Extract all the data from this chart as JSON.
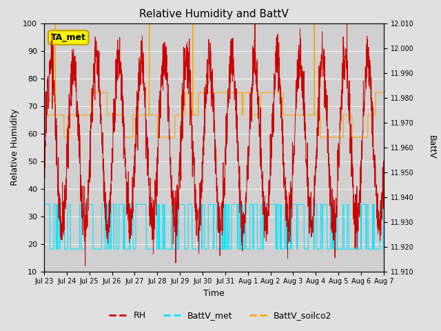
{
  "title": "Relative Humidity and BattV",
  "xlabel": "Time",
  "ylabel_left": "Relative Humidity",
  "ylabel_right": "BattV",
  "xlim": [
    0,
    360
  ],
  "ylim_left": [
    10,
    100
  ],
  "ylim_right": [
    11.91,
    12.01
  ],
  "fig_bg": "#e0e0e0",
  "plot_bg": "#d0d0d0",
  "rh_color": "#cc0000",
  "battv_met_color": "#00e5ff",
  "battv_soilco2_color": "#ffa500",
  "annotation_text": "TA_met",
  "annotation_facecolor": "#f5f500",
  "annotation_edgecolor": "#c8a000",
  "xtick_labels": [
    "Jul 23",
    "Jul 24",
    "Jul 25",
    "Jul 26",
    "Jul 27",
    "Jul 28",
    "Jul 29",
    "Jul 30",
    "Jul 31",
    "Aug 1",
    "Aug 2",
    "Aug 3",
    "Aug 4",
    "Aug 5",
    "Aug 6",
    "Aug 7"
  ],
  "ytick_left": [
    10,
    20,
    30,
    40,
    50,
    60,
    70,
    80,
    90,
    100
  ],
  "ytick_right": [
    11.91,
    11.92,
    11.93,
    11.94,
    11.95,
    11.96,
    11.97,
    11.98,
    11.99,
    12.0,
    12.01
  ],
  "grid_color": "#bcbcbc",
  "title_fontsize": 11,
  "label_fontsize": 9,
  "tick_fontsize": 8,
  "legend_fontsize": 9
}
